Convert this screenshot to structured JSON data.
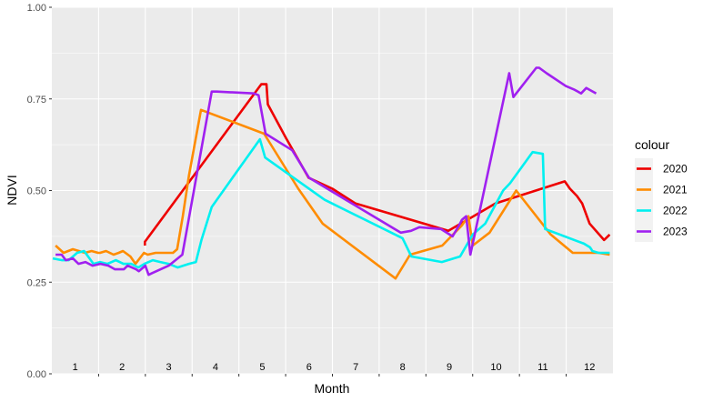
{
  "chart_data": {
    "type": "line",
    "xlabel": "Month",
    "ylabel": "NDVI",
    "xlim": [
      0.5,
      12.5
    ],
    "ylim": [
      0,
      1
    ],
    "yticks": [
      {
        "value": 0.0,
        "label": "0.00"
      },
      {
        "value": 0.25,
        "label": "0.25"
      },
      {
        "value": 0.5,
        "label": "0.50"
      },
      {
        "value": 0.75,
        "label": "0.75"
      },
      {
        "value": 1.0,
        "label": "1.00"
      }
    ],
    "month_labels": [
      "1",
      "2",
      "3",
      "4",
      "5",
      "6",
      "7",
      "8",
      "9",
      "10",
      "11",
      "12"
    ],
    "grid": true,
    "legend": {
      "title": "colour",
      "position": "right"
    },
    "series": [
      {
        "name": "2020",
        "color": "#ee0000",
        "x": [
          2.49,
          2.49,
          4.98,
          5.09,
          5.12,
          5.5,
          5.99,
          6.5,
          6.99,
          8.98,
          9.99,
          11.47,
          11.58,
          11.73,
          11.84,
          12.0,
          12.31,
          12.43
        ],
        "y": [
          0.35,
          0.36,
          0.79,
          0.79,
          0.735,
          0.645,
          0.535,
          0.505,
          0.465,
          0.39,
          0.465,
          0.525,
          0.505,
          0.485,
          0.465,
          0.41,
          0.365,
          0.38
        ]
      },
      {
        "name": "2021",
        "color": "#ff8c00",
        "x": [
          0.58,
          0.75,
          0.95,
          1.21,
          1.35,
          1.49,
          1.53,
          1.66,
          1.82,
          1.93,
          2.02,
          2.18,
          2.29,
          2.47,
          2.55,
          2.72,
          3.09,
          3.18,
          3.3,
          3.43,
          3.69,
          5.04,
          5.77,
          6.29,
          7.85,
          8.16,
          8.85,
          9.27,
          9.41,
          9.5,
          9.86,
          10.43,
          11.17,
          11.64,
          11.85,
          12.0,
          12.19,
          12.43
        ],
        "y": [
          0.35,
          0.33,
          0.34,
          0.33,
          0.335,
          0.33,
          0.33,
          0.335,
          0.325,
          0.33,
          0.335,
          0.32,
          0.3,
          0.33,
          0.325,
          0.33,
          0.33,
          0.34,
          0.43,
          0.54,
          0.72,
          0.655,
          0.505,
          0.41,
          0.26,
          0.325,
          0.35,
          0.405,
          0.43,
          0.35,
          0.385,
          0.5,
          0.38,
          0.33,
          0.33,
          0.33,
          0.33,
          0.325
        ]
      },
      {
        "name": "2022",
        "color": "#00f0f0",
        "x": [
          0.52,
          0.72,
          0.86,
          1.04,
          1.19,
          1.39,
          1.53,
          1.69,
          1.87,
          2.03,
          2.2,
          2.35,
          2.48,
          2.66,
          2.82,
          3.0,
          3.19,
          3.43,
          3.58,
          3.7,
          3.92,
          4.95,
          5.06,
          6.33,
          8.0,
          8.19,
          8.84,
          9.23,
          9.5,
          9.77,
          10.15,
          10.3,
          10.78,
          11.0,
          11.05,
          11.88,
          12.01,
          12.06,
          12.19,
          12.43
        ],
        "y": [
          0.315,
          0.31,
          0.31,
          0.33,
          0.335,
          0.3,
          0.305,
          0.3,
          0.31,
          0.3,
          0.3,
          0.29,
          0.3,
          0.31,
          0.305,
          0.3,
          0.29,
          0.3,
          0.305,
          0.365,
          0.455,
          0.64,
          0.59,
          0.475,
          0.37,
          0.32,
          0.305,
          0.32,
          0.38,
          0.41,
          0.5,
          0.52,
          0.605,
          0.6,
          0.395,
          0.355,
          0.345,
          0.335,
          0.33,
          0.33
        ]
      },
      {
        "name": "2023",
        "color": "#a020f0",
        "x": [
          0.58,
          0.71,
          0.8,
          0.95,
          1.07,
          1.22,
          1.37,
          1.54,
          1.71,
          1.85,
          2.04,
          2.12,
          2.3,
          2.36,
          2.5,
          2.57,
          2.65,
          3.0,
          3.29,
          3.92,
          4.03,
          4.82,
          4.92,
          5.07,
          5.64,
          6.0,
          7.96,
          8.18,
          8.36,
          8.82,
          9.07,
          9.21,
          9.27,
          9.36,
          9.45,
          10.28,
          10.37,
          10.86,
          10.92,
          11.08,
          11.49,
          11.68,
          11.82,
          11.93,
          12.07,
          12.14
        ],
        "y": [
          0.325,
          0.325,
          0.31,
          0.315,
          0.3,
          0.305,
          0.295,
          0.3,
          0.295,
          0.285,
          0.285,
          0.295,
          0.285,
          0.28,
          0.295,
          0.27,
          0.275,
          0.295,
          0.325,
          0.77,
          0.77,
          0.765,
          0.76,
          0.655,
          0.61,
          0.535,
          0.385,
          0.39,
          0.4,
          0.395,
          0.375,
          0.405,
          0.42,
          0.43,
          0.325,
          0.82,
          0.755,
          0.835,
          0.835,
          0.82,
          0.785,
          0.775,
          0.765,
          0.78,
          0.77,
          0.765
        ]
      }
    ]
  }
}
